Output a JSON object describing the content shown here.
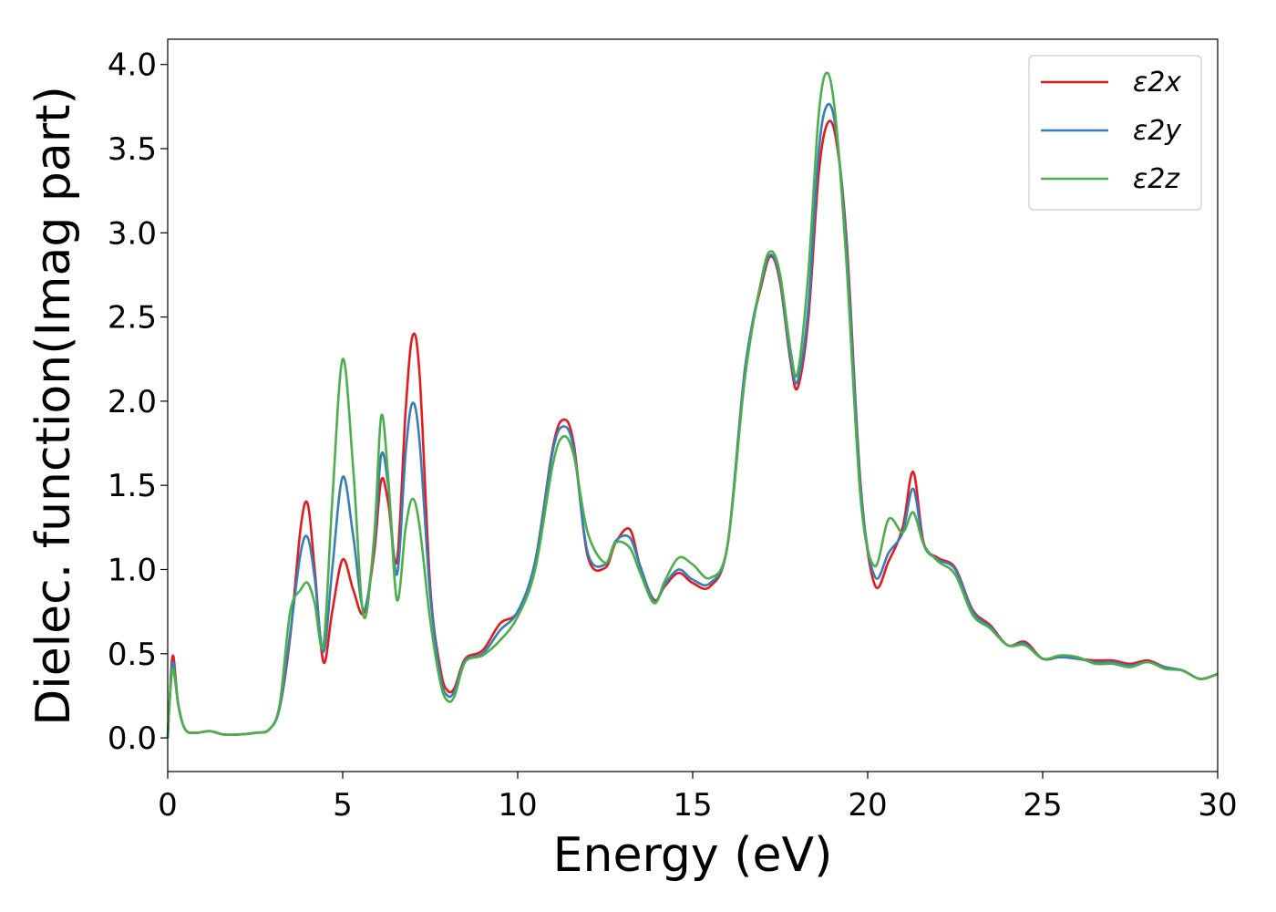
{
  "chart_data": {
    "type": "line",
    "xlabel": "Energy (eV)",
    "ylabel": "Dielec. function(Imag part)",
    "xlim": [
      0,
      30
    ],
    "ylim": [
      -0.2,
      4.15
    ],
    "xticks": [
      "0",
      "5",
      "10",
      "15",
      "20",
      "25",
      "30"
    ],
    "yticks": [
      "0.0",
      "0.5",
      "1.0",
      "1.5",
      "2.0",
      "2.5",
      "3.0",
      "3.5",
      "4.0"
    ],
    "grid": false,
    "legend_position": "top-right",
    "series": [
      {
        "name": "ε2x",
        "color": "#e41a1c",
        "x": [
          0,
          0.05,
          0.15,
          0.3,
          0.5,
          0.8,
          1.2,
          1.6,
          2.0,
          2.5,
          2.9,
          3.2,
          3.5,
          3.8,
          4.0,
          4.2,
          4.45,
          4.7,
          5.0,
          5.3,
          5.6,
          5.9,
          6.1,
          6.3,
          6.55,
          6.8,
          7.0,
          7.2,
          7.5,
          7.8,
          8.0,
          8.2,
          8.5,
          9.0,
          9.5,
          10.0,
          10.5,
          11.0,
          11.3,
          11.6,
          12.0,
          12.5,
          12.8,
          13.2,
          13.5,
          13.9,
          14.2,
          14.6,
          15.0,
          15.5,
          16.0,
          16.5,
          17.0,
          17.25,
          17.5,
          17.8,
          18.0,
          18.3,
          18.6,
          18.85,
          19.1,
          19.4,
          19.8,
          20.2,
          20.6,
          21.0,
          21.3,
          21.6,
          22.0,
          22.5,
          23.0,
          23.5,
          24.0,
          24.5,
          25.0,
          25.5,
          26.0,
          26.5,
          27.0,
          27.5,
          28.0,
          28.5,
          29.0,
          29.5,
          30.0
        ],
        "y": [
          0.0,
          0.2,
          0.49,
          0.2,
          0.05,
          0.03,
          0.04,
          0.02,
          0.02,
          0.03,
          0.05,
          0.18,
          0.6,
          1.25,
          1.39,
          1.0,
          0.45,
          0.75,
          1.06,
          0.88,
          0.74,
          1.1,
          1.53,
          1.4,
          1.05,
          1.95,
          2.39,
          2.15,
          0.9,
          0.4,
          0.28,
          0.3,
          0.47,
          0.52,
          0.68,
          0.75,
          1.05,
          1.72,
          1.89,
          1.75,
          1.08,
          1.01,
          1.16,
          1.24,
          1.02,
          0.82,
          0.9,
          0.98,
          0.92,
          0.9,
          1.15,
          2.2,
          2.72,
          2.86,
          2.7,
          2.23,
          2.08,
          2.48,
          3.35,
          3.65,
          3.55,
          2.95,
          1.5,
          0.91,
          1.05,
          1.25,
          1.58,
          1.16,
          1.07,
          1.01,
          0.76,
          0.67,
          0.55,
          0.57,
          0.47,
          0.48,
          0.47,
          0.46,
          0.46,
          0.44,
          0.46,
          0.42,
          0.4,
          0.35,
          0.38
        ]
      },
      {
        "name": "ε2y",
        "color": "#377eb8",
        "x": [
          0,
          0.05,
          0.15,
          0.3,
          0.5,
          0.8,
          1.2,
          1.6,
          2.0,
          2.5,
          2.9,
          3.2,
          3.5,
          3.8,
          4.0,
          4.2,
          4.45,
          4.7,
          5.0,
          5.3,
          5.6,
          5.9,
          6.1,
          6.3,
          6.55,
          6.8,
          7.0,
          7.2,
          7.5,
          7.8,
          8.0,
          8.2,
          8.5,
          9.0,
          9.5,
          10.0,
          10.5,
          11.0,
          11.3,
          11.6,
          12.0,
          12.5,
          12.8,
          13.2,
          13.5,
          13.9,
          14.2,
          14.6,
          15.0,
          15.5,
          16.0,
          16.5,
          17.0,
          17.25,
          17.5,
          17.8,
          18.0,
          18.3,
          18.6,
          18.85,
          19.1,
          19.4,
          19.8,
          20.2,
          20.6,
          21.0,
          21.3,
          21.6,
          22.0,
          22.5,
          23.0,
          23.5,
          24.0,
          24.5,
          25.0,
          25.5,
          26.0,
          26.5,
          27.0,
          27.5,
          28.0,
          28.5,
          29.0,
          29.5,
          30.0
        ],
        "y": [
          0.0,
          0.2,
          0.45,
          0.2,
          0.05,
          0.03,
          0.04,
          0.02,
          0.02,
          0.03,
          0.05,
          0.18,
          0.62,
          1.1,
          1.19,
          0.95,
          0.51,
          1.0,
          1.55,
          1.2,
          0.76,
          1.15,
          1.68,
          1.5,
          0.97,
          1.7,
          1.99,
          1.75,
          0.85,
          0.36,
          0.25,
          0.28,
          0.46,
          0.5,
          0.64,
          0.75,
          1.05,
          1.7,
          1.85,
          1.72,
          1.1,
          1.03,
          1.17,
          1.19,
          1.02,
          0.81,
          0.91,
          1.0,
          0.94,
          0.92,
          1.15,
          2.2,
          2.74,
          2.87,
          2.72,
          2.25,
          2.12,
          2.55,
          3.48,
          3.76,
          3.6,
          2.9,
          1.48,
          0.96,
          1.1,
          1.22,
          1.48,
          1.15,
          1.06,
          1.0,
          0.75,
          0.66,
          0.55,
          0.56,
          0.47,
          0.48,
          0.47,
          0.45,
          0.45,
          0.43,
          0.45,
          0.42,
          0.4,
          0.35,
          0.38
        ]
      },
      {
        "name": "ε2z",
        "color": "#4daf4a",
        "x": [
          0,
          0.05,
          0.15,
          0.3,
          0.5,
          0.8,
          1.2,
          1.6,
          2.0,
          2.5,
          2.9,
          3.2,
          3.5,
          3.8,
          4.0,
          4.2,
          4.45,
          4.7,
          5.0,
          5.3,
          5.6,
          5.9,
          6.1,
          6.3,
          6.55,
          6.8,
          7.0,
          7.2,
          7.5,
          7.8,
          8.0,
          8.2,
          8.5,
          9.0,
          9.5,
          10.0,
          10.5,
          11.0,
          11.3,
          11.6,
          12.0,
          12.5,
          12.8,
          13.2,
          13.5,
          13.9,
          14.2,
          14.6,
          15.0,
          15.5,
          16.0,
          16.5,
          17.0,
          17.25,
          17.5,
          17.8,
          18.0,
          18.3,
          18.6,
          18.85,
          19.1,
          19.4,
          19.8,
          20.2,
          20.6,
          21.0,
          21.3,
          21.6,
          22.0,
          22.5,
          23.0,
          23.5,
          24.0,
          24.5,
          25.0,
          25.5,
          26.0,
          26.5,
          27.0,
          27.5,
          28.0,
          28.5,
          29.0,
          29.5,
          30.0
        ],
        "y": [
          0.0,
          0.2,
          0.41,
          0.2,
          0.05,
          0.03,
          0.04,
          0.02,
          0.02,
          0.03,
          0.05,
          0.2,
          0.75,
          0.88,
          0.92,
          0.8,
          0.55,
          1.4,
          2.25,
          1.6,
          0.72,
          1.2,
          1.91,
          1.55,
          0.82,
          1.25,
          1.42,
          1.25,
          0.7,
          0.32,
          0.22,
          0.25,
          0.45,
          0.49,
          0.58,
          0.72,
          1.0,
          1.62,
          1.79,
          1.68,
          1.22,
          1.04,
          1.16,
          1.13,
          0.98,
          0.8,
          0.93,
          1.07,
          1.03,
          0.95,
          1.15,
          2.15,
          2.76,
          2.89,
          2.75,
          2.3,
          2.17,
          2.75,
          3.7,
          3.95,
          3.65,
          2.8,
          1.42,
          1.02,
          1.3,
          1.22,
          1.34,
          1.15,
          1.05,
          0.97,
          0.73,
          0.65,
          0.55,
          0.55,
          0.47,
          0.49,
          0.48,
          0.44,
          0.44,
          0.42,
          0.45,
          0.41,
          0.4,
          0.35,
          0.38
        ]
      }
    ]
  }
}
